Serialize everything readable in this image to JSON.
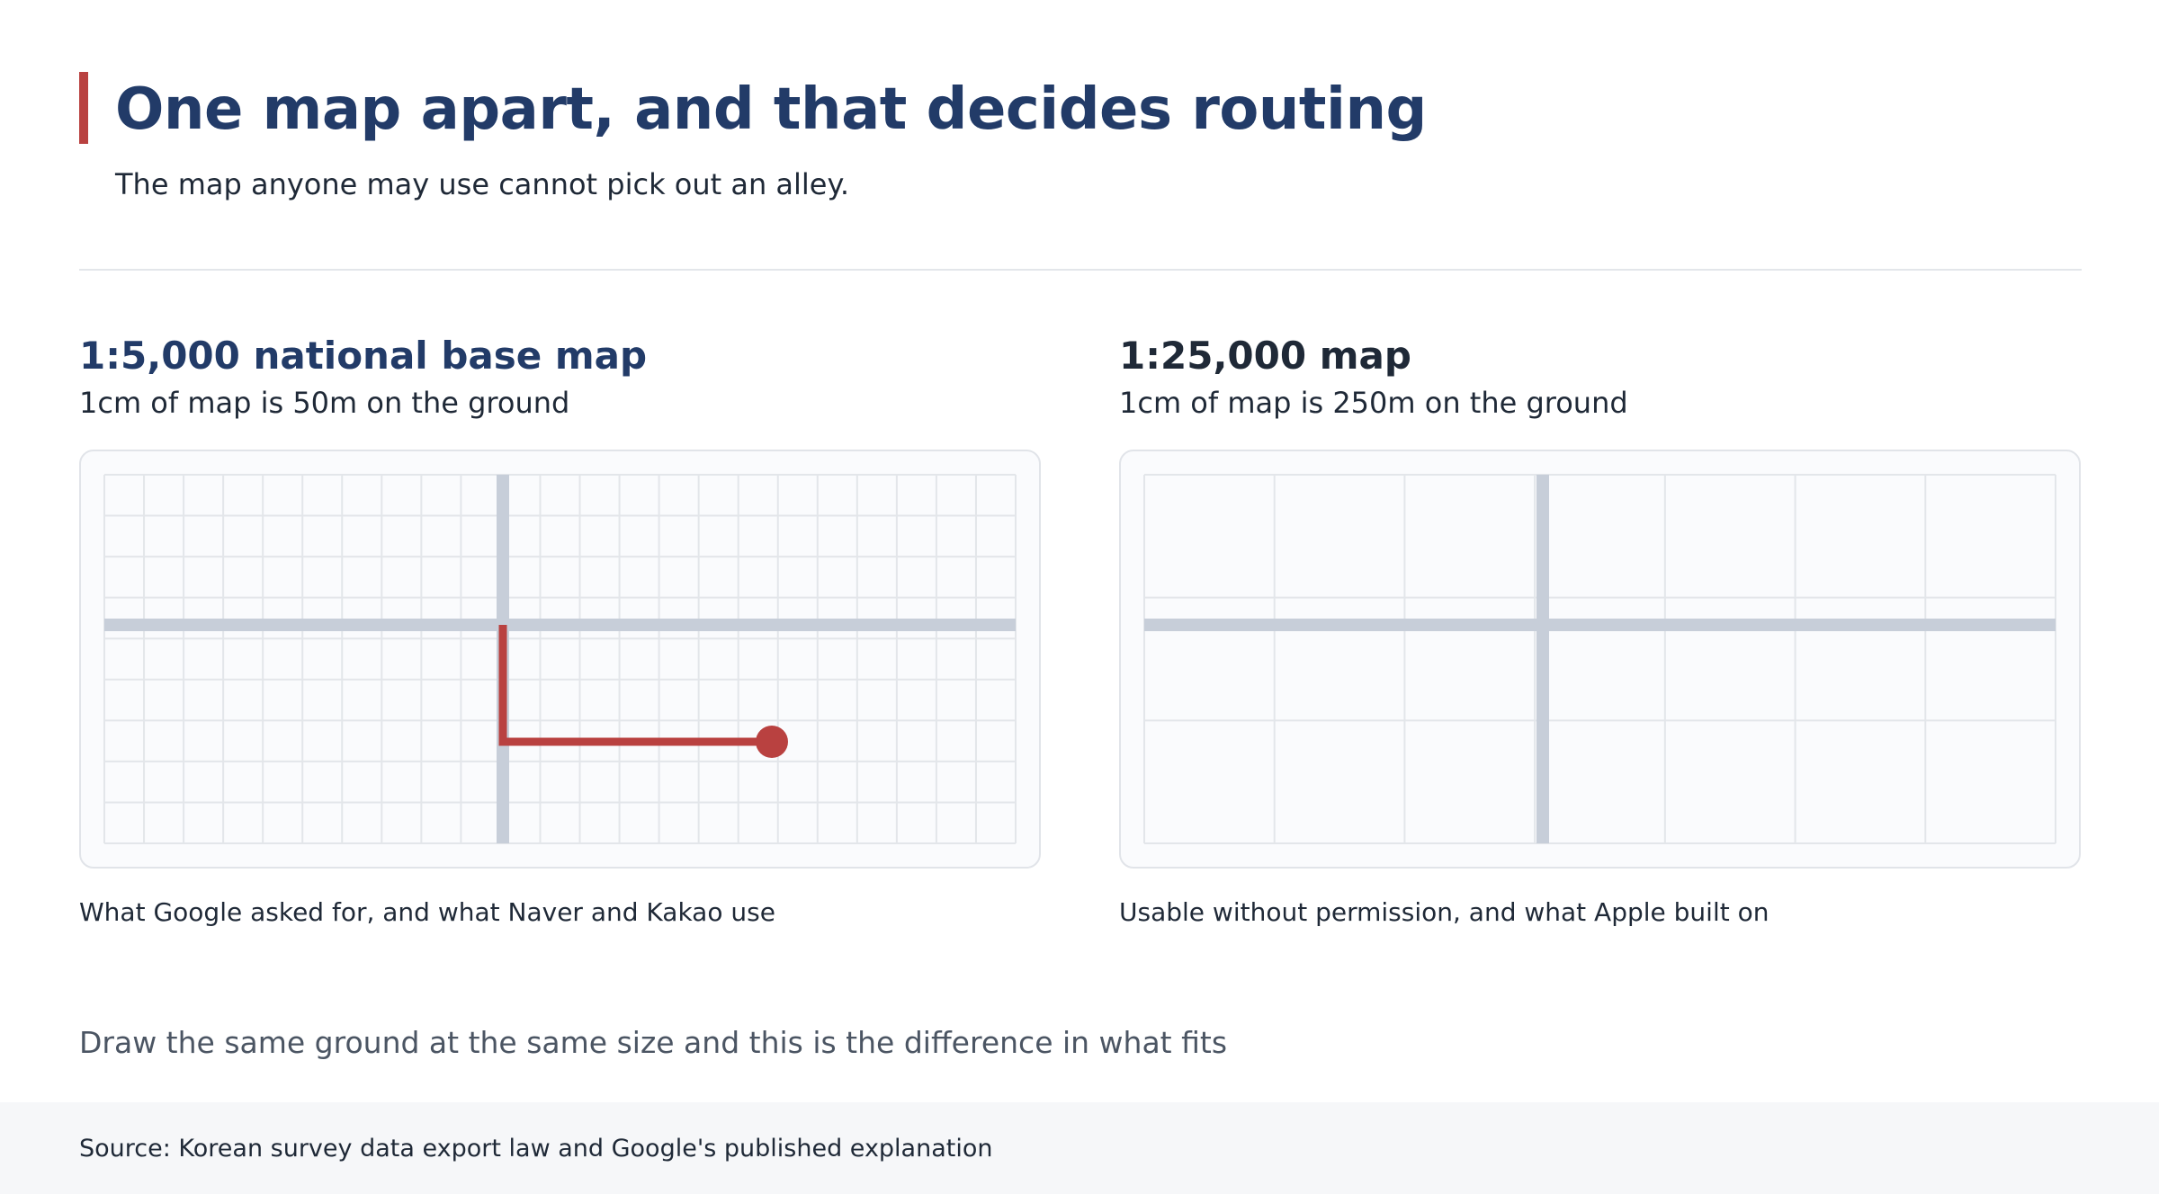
{
  "header": {
    "title": "One map apart, and that decides routing",
    "subtitle": "The map anyone may use cannot pick out an alley.",
    "accent_color": "#b94140"
  },
  "panels": [
    {
      "title": "1:5,000 national base map",
      "subtitle": "1cm of map is 50m on the ground",
      "caption": "What Google asked for, and what Naver and Kakao use",
      "grid_divisions": {
        "columns": 23,
        "rows": 9
      },
      "has_route": true,
      "route_color": "#b94140"
    },
    {
      "title": "1:25,000 map",
      "subtitle": "1cm of map is 250m on the ground",
      "caption": "Usable without permission, and what Apple built on",
      "grid_divisions": {
        "columns": 7,
        "rows": 3
      },
      "has_route": false
    }
  ],
  "note": "Draw the same ground at the same size and this is the difference in what fits",
  "footer": {
    "source": "Source: Korean survey data export law and Google's published explanation"
  },
  "colors": {
    "title": "#223b68",
    "road": "#c7ced9",
    "grid": "#e3e6ea",
    "map_bg": "#fafbfd"
  }
}
